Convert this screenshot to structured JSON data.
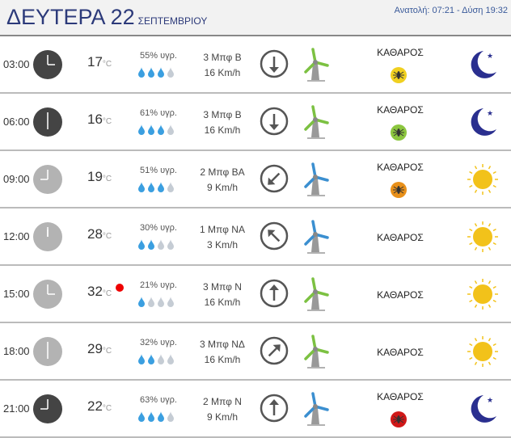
{
  "header": {
    "day": "ΔΕΥΤΕΡΑ 22",
    "month": "ΣΕΠΤΕΜΒΡΙΟΥ",
    "sun": "Ανατολή: 07:21  - Δύση 19:32"
  },
  "colors": {
    "drop_on": "#3b9fe0",
    "drop_off": "#c5ccd4",
    "turbine_green": "#7cc142",
    "turbine_blue": "#3b8fd0",
    "moon": "#2a2f8f",
    "sun": "#f2c21a"
  },
  "rows": [
    {
      "time": "03:00",
      "hour": 3,
      "night": true,
      "temp": "17",
      "unit": "°C",
      "hum": "55% υγρ.",
      "drops": 3,
      "wind": "3 Μπφ Β",
      "speed": "16 Km/h",
      "dir": 180,
      "turbine": "green",
      "cond": "ΚΑΘΑΡΟΣ",
      "mosquito": "#f0d020",
      "icon": "moon",
      "alert": false
    },
    {
      "time": "06:00",
      "hour": 6,
      "night": true,
      "temp": "16",
      "unit": "°C",
      "hum": "61% υγρ.",
      "drops": 3,
      "wind": "3 Μπφ Β",
      "speed": "16 Km/h",
      "dir": 180,
      "turbine": "green",
      "cond": "ΚΑΘΑΡΟΣ",
      "mosquito": "#8cc63f",
      "icon": "moon",
      "alert": false
    },
    {
      "time": "09:00",
      "hour": 9,
      "night": false,
      "temp": "19",
      "unit": "°C",
      "hum": "51% υγρ.",
      "drops": 3,
      "wind": "2 Μπφ ΒΑ",
      "speed": "9 Km/h",
      "dir": 225,
      "turbine": "blue",
      "cond": "ΚΑΘΑΡΟΣ",
      "mosquito": "#e8901a",
      "icon": "sun",
      "alert": false
    },
    {
      "time": "12:00",
      "hour": 12,
      "night": false,
      "temp": "28",
      "unit": "°C",
      "hum": "30% υγρ.",
      "drops": 2,
      "wind": "1 Μπφ ΝΑ",
      "speed": "3 Km/h",
      "dir": 315,
      "turbine": "blue",
      "cond": "ΚΑΘΑΡΟΣ",
      "mosquito": null,
      "icon": "sun",
      "alert": false
    },
    {
      "time": "15:00",
      "hour": 3,
      "night": false,
      "temp": "32",
      "unit": "°C",
      "hum": "21% υγρ.",
      "drops": 1,
      "wind": "3 Μπφ Ν",
      "speed": "16 Km/h",
      "dir": 0,
      "turbine": "green",
      "cond": "ΚΑΘΑΡΟΣ",
      "mosquito": null,
      "icon": "sun",
      "alert": true
    },
    {
      "time": "18:00",
      "hour": 6,
      "night": false,
      "temp": "29",
      "unit": "°C",
      "hum": "32% υγρ.",
      "drops": 2,
      "wind": "3 Μπφ ΝΔ",
      "speed": "16 Km/h",
      "dir": 45,
      "turbine": "green",
      "cond": "ΚΑΘΑΡΟΣ",
      "mosquito": null,
      "icon": "sun",
      "alert": false
    },
    {
      "time": "21:00",
      "hour": 9,
      "night": true,
      "temp": "22",
      "unit": "°C",
      "hum": "63% υγρ.",
      "drops": 3,
      "wind": "2 Μπφ Ν",
      "speed": "9 Km/h",
      "dir": 0,
      "turbine": "blue",
      "cond": "ΚΑΘΑΡΟΣ",
      "mosquito": "#d01818",
      "icon": "moon",
      "alert": false
    }
  ]
}
